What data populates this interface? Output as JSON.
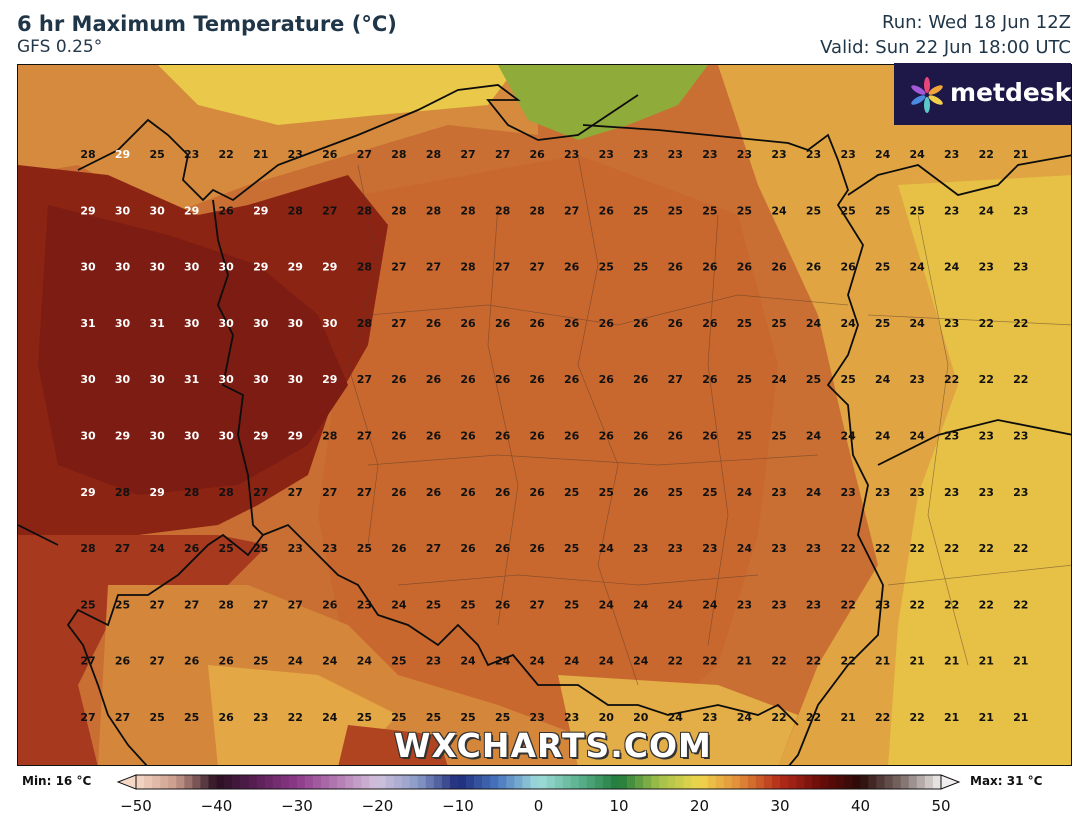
{
  "header": {
    "title": "6 hr Maximum Temperature (°C)",
    "model": "GFS 0.25°",
    "run": "Run: Wed 18 Jun 12Z",
    "valid": "Valid: Sun 22 Jun 18:00 UTC"
  },
  "logo": {
    "text": "metdesk",
    "icon": "metdesk-pinwheel-icon"
  },
  "watermark": "WXCHARTS.COM",
  "legend": {
    "min_label": "Min: 16 °C",
    "max_label": "Max: 31 °C",
    "ticks": [
      "−50",
      "−40",
      "−30",
      "−20",
      "−10",
      "0",
      "10",
      "20",
      "30",
      "40",
      "50"
    ],
    "range": [
      -50,
      50
    ]
  },
  "grid": {
    "rows": [
      [
        "28",
        "29",
        "25",
        "23",
        "22",
        "21",
        "23",
        "26",
        "27",
        "28",
        "28",
        "27",
        "27",
        "26",
        "23",
        "23",
        "23",
        "23",
        "23",
        "23",
        "23",
        "23",
        "23",
        "24",
        "24",
        "23",
        "22",
        "21"
      ],
      [
        "29",
        "30",
        "30",
        "29",
        "26",
        "29",
        "28",
        "27",
        "28",
        "28",
        "28",
        "28",
        "28",
        "28",
        "27",
        "26",
        "25",
        "25",
        "25",
        "25",
        "24",
        "25",
        "25",
        "25",
        "25",
        "23",
        "24",
        "23"
      ],
      [
        "30",
        "30",
        "30",
        "30",
        "30",
        "29",
        "29",
        "29",
        "28",
        "27",
        "27",
        "28",
        "27",
        "27",
        "26",
        "25",
        "25",
        "26",
        "26",
        "26",
        "26",
        "26",
        "26",
        "25",
        "24",
        "24",
        "23",
        "23"
      ],
      [
        "31",
        "30",
        "31",
        "30",
        "30",
        "30",
        "30",
        "30",
        "28",
        "27",
        "26",
        "26",
        "26",
        "26",
        "26",
        "26",
        "26",
        "26",
        "26",
        "25",
        "25",
        "24",
        "24",
        "25",
        "24",
        "23",
        "22",
        "22"
      ],
      [
        "30",
        "30",
        "30",
        "31",
        "30",
        "30",
        "30",
        "29",
        "27",
        "26",
        "26",
        "26",
        "26",
        "26",
        "26",
        "26",
        "26",
        "27",
        "26",
        "25",
        "24",
        "25",
        "25",
        "24",
        "23",
        "22",
        "22",
        "22"
      ],
      [
        "30",
        "29",
        "30",
        "30",
        "30",
        "29",
        "29",
        "28",
        "27",
        "26",
        "26",
        "26",
        "26",
        "26",
        "26",
        "26",
        "26",
        "26",
        "26",
        "25",
        "25",
        "24",
        "24",
        "24",
        "24",
        "23",
        "23",
        "23"
      ],
      [
        "29",
        "28",
        "29",
        "28",
        "28",
        "27",
        "27",
        "27",
        "27",
        "26",
        "26",
        "26",
        "26",
        "26",
        "25",
        "25",
        "26",
        "25",
        "25",
        "24",
        "23",
        "24",
        "23",
        "23",
        "23",
        "23",
        "23",
        "23"
      ],
      [
        "28",
        "27",
        "24",
        "26",
        "25",
        "25",
        "23",
        "23",
        "25",
        "26",
        "27",
        "26",
        "26",
        "26",
        "25",
        "24",
        "23",
        "23",
        "23",
        "24",
        "23",
        "23",
        "22",
        "22",
        "22",
        "22",
        "22",
        "22"
      ],
      [
        "25",
        "25",
        "27",
        "27",
        "28",
        "27",
        "27",
        "26",
        "23",
        "24",
        "25",
        "25",
        "26",
        "27",
        "25",
        "24",
        "24",
        "24",
        "24",
        "23",
        "23",
        "23",
        "22",
        "23",
        "22",
        "22",
        "22",
        "22"
      ],
      [
        "27",
        "26",
        "27",
        "26",
        "26",
        "25",
        "24",
        "24",
        "24",
        "25",
        "23",
        "24",
        "24",
        "24",
        "24",
        "24",
        "24",
        "22",
        "22",
        "21",
        "22",
        "22",
        "22",
        "21",
        "21",
        "21",
        "21",
        "21"
      ],
      [
        "27",
        "27",
        "25",
        "25",
        "26",
        "23",
        "22",
        "24",
        "25",
        "25",
        "25",
        "25",
        "25",
        "23",
        "23",
        "20",
        "20",
        "24",
        "23",
        "24",
        "22",
        "22",
        "21",
        "22",
        "22",
        "21",
        "21",
        "21"
      ]
    ]
  }
}
